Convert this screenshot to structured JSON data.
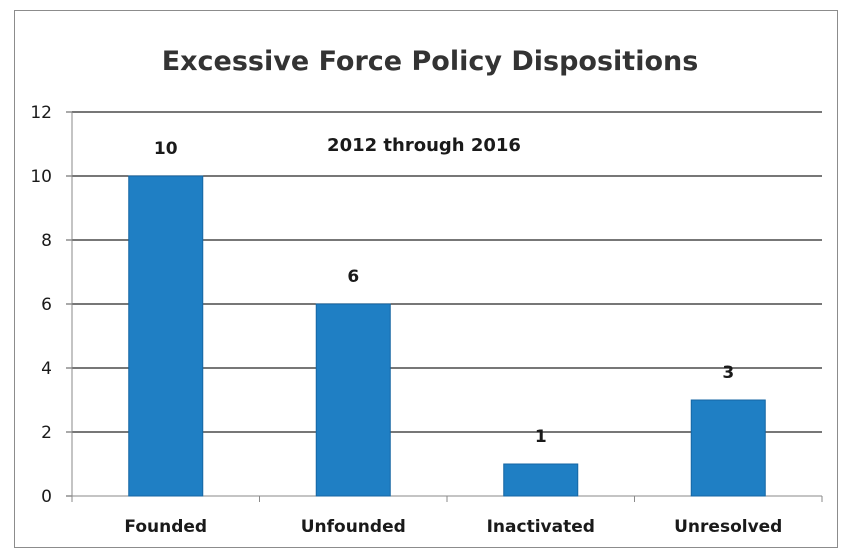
{
  "chart_data": {
    "type": "bar",
    "title": "Excessive Force Policy Dispositions",
    "subtitle": "2012 through 2016",
    "categories": [
      "Founded",
      "Unfounded",
      "Inactivated",
      "Unresolved"
    ],
    "values": [
      10,
      6,
      1,
      3
    ],
    "data_labels": [
      "10",
      "6",
      "1",
      "3"
    ],
    "ylim": [
      0,
      12
    ],
    "yticks": [
      0,
      2,
      4,
      6,
      8,
      10,
      12
    ],
    "xlabel": "",
    "ylabel": "",
    "grid": true,
    "legend": "none",
    "bar_color": "#1f7fc4",
    "bar_edge_color": "#1566a3",
    "grid_color": "#262626"
  }
}
